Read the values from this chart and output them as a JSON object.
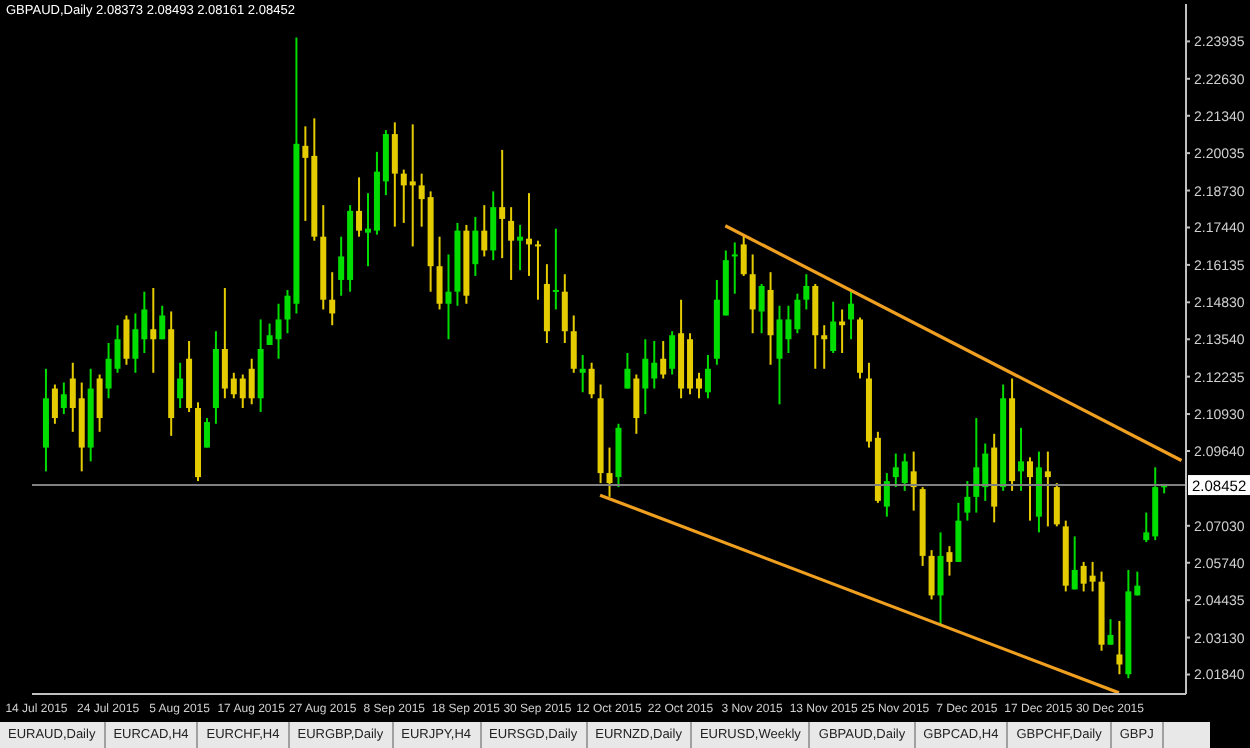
{
  "chart_data": {
    "type": "candlestick",
    "title": "GBPAUD,Daily 2.08373 2.08493 2.08161 2.08452",
    "categories": [
      "14 Jul 2015",
      null,
      null,
      null,
      null,
      null,
      null,
      null,
      "24 Jul 2015",
      null,
      null,
      null,
      null,
      null,
      null,
      null,
      "5 Aug 2015",
      null,
      null,
      null,
      null,
      null,
      null,
      null,
      "17 Aug 2015",
      null,
      null,
      null,
      null,
      null,
      null,
      null,
      "27 Aug 2015",
      null,
      null,
      null,
      null,
      null,
      null,
      null,
      "8 Sep 2015",
      null,
      null,
      null,
      null,
      null,
      null,
      null,
      "18 Sep 2015",
      null,
      null,
      null,
      null,
      null,
      null,
      null,
      "30 Sep 2015",
      null,
      null,
      null,
      null,
      null,
      null,
      null,
      "12 Oct 2015",
      null,
      null,
      null,
      null,
      null,
      null,
      null,
      "22 Oct 2015",
      null,
      null,
      null,
      null,
      null,
      null,
      null,
      "3 Nov 2015",
      null,
      null,
      null,
      null,
      null,
      null,
      null,
      "13 Nov 2015",
      null,
      null,
      null,
      null,
      null,
      null,
      null,
      "25 Nov 2015",
      null,
      null,
      null,
      null,
      null,
      null,
      null,
      "7 Dec 2015",
      null,
      null,
      null,
      null,
      null,
      null,
      null,
      "17 Dec 2015",
      null,
      null,
      null,
      null,
      null,
      null,
      null,
      "30 Dec 2015",
      null,
      null,
      null,
      null,
      null,
      null,
      null,
      null
    ],
    "ohlc": [
      null,
      [
        2.0976,
        2.1251,
        2.0893,
        2.1148
      ],
      [
        2.1182,
        2.1196,
        2.1059,
        2.1079
      ],
      [
        2.1114,
        2.1203,
        2.1093,
        2.1162
      ],
      [
        2.1217,
        2.1272,
        2.1031,
        2.1114
      ],
      [
        2.1148,
        2.1203,
        2.0893,
        2.0976
      ],
      [
        2.0976,
        2.1251,
        2.0928,
        2.1182
      ],
      [
        2.1217,
        2.1231,
        2.1031,
        2.1079
      ],
      [
        2.1182,
        2.1341,
        2.1148,
        2.1286
      ],
      [
        2.1251,
        2.1403,
        2.1237,
        2.1354
      ],
      [
        2.1423,
        2.1437,
        2.1265,
        2.1286
      ],
      [
        2.1286,
        2.1444,
        2.1237,
        2.1389
      ],
      [
        2.1354,
        2.152,
        2.1306,
        2.1458
      ],
      [
        2.1389,
        2.1533,
        2.1237,
        2.1354
      ],
      [
        2.1354,
        2.1471,
        2.1354,
        2.1437
      ],
      [
        2.1389,
        2.1451,
        2.1017,
        2.1079
      ],
      [
        2.1148,
        2.1272,
        2.1114,
        2.1217
      ],
      [
        2.1286,
        2.1348,
        2.11,
        2.1114
      ],
      [
        2.1114,
        2.1134,
        2.0859,
        2.0873
      ],
      [
        2.0976,
        2.1079,
        2.0976,
        2.1065
      ],
      [
        2.1114,
        2.1382,
        2.1059,
        2.132
      ],
      [
        2.132,
        2.1533,
        2.1148,
        2.1182
      ],
      [
        2.1217,
        2.1237,
        2.1148,
        2.1162
      ],
      [
        2.1217,
        2.1231,
        2.1114,
        2.1148
      ],
      [
        2.1251,
        2.1286,
        2.1127,
        2.1148
      ],
      [
        2.1148,
        2.1423,
        2.11,
        2.132
      ],
      [
        2.1334,
        2.1409,
        2.1334,
        2.1368
      ],
      [
        2.1354,
        2.1478,
        2.1286,
        2.1423
      ],
      [
        2.1423,
        2.1526,
        2.1375,
        2.1506
      ],
      [
        2.1478,
        2.2407,
        2.1444,
        2.2036
      ],
      [
        2.2029,
        2.2097,
        2.1767,
        2.1987
      ],
      [
        2.1994,
        2.2125,
        2.1698,
        2.1712
      ],
      [
        2.1712,
        2.1822,
        2.1458,
        2.1492
      ],
      [
        2.1492,
        2.1588,
        2.1403,
        2.1444
      ],
      [
        2.1561,
        2.1712,
        2.1506,
        2.1643
      ],
      [
        2.1561,
        2.1822,
        2.152,
        2.1802
      ],
      [
        2.1802,
        2.1919,
        2.1712,
        2.1733
      ],
      [
        2.1726,
        2.1864,
        2.1609,
        2.174
      ],
      [
        2.1733,
        2.2008,
        2.1719,
        2.1939
      ],
      [
        2.1905,
        2.2084,
        2.1857,
        2.207
      ],
      [
        2.207,
        2.2111,
        2.1747,
        2.1932
      ],
      [
        2.1932,
        2.1946,
        2.176,
        2.1891
      ],
      [
        2.1905,
        2.2104,
        2.1678,
        2.1891
      ],
      [
        2.1891,
        2.1932,
        2.1747,
        2.1843
      ],
      [
        2.185,
        2.187,
        2.152,
        2.1609
      ],
      [
        2.1609,
        2.1712,
        2.1458,
        2.1478
      ],
      [
        2.1478,
        2.165,
        2.1354,
        2.152
      ],
      [
        2.152,
        2.176,
        2.1471,
        2.1733
      ],
      [
        2.1733,
        2.1753,
        2.1478,
        2.1506
      ],
      [
        2.1616,
        2.1781,
        2.1575,
        2.1733
      ],
      [
        2.1733,
        2.1822,
        2.1643,
        2.1664
      ],
      [
        2.1664,
        2.187,
        2.163,
        2.1815
      ],
      [
        2.1815,
        2.2015,
        2.1637,
        2.1774
      ],
      [
        2.1767,
        2.1815,
        2.1561,
        2.1698
      ],
      [
        2.1698,
        2.1753,
        2.1595,
        2.1712
      ],
      [
        2.1705,
        2.1864,
        2.1575,
        2.1685
      ],
      [
        2.1685,
        2.1698,
        2.1492,
        2.1678
      ],
      [
        2.1547,
        2.1616,
        2.1341,
        2.1382
      ],
      [
        2.152,
        2.174,
        2.1458,
        2.1526
      ],
      [
        2.152,
        2.1581,
        2.1341,
        2.1382
      ],
      [
        2.1382,
        2.1437,
        2.1237,
        2.1251
      ],
      [
        2.1237,
        2.1299,
        2.1169,
        2.1251
      ],
      [
        2.1251,
        2.1272,
        2.1148,
        2.1162
      ],
      [
        2.1148,
        2.1196,
        2.0852,
        2.0887
      ],
      [
        2.0887,
        2.0976,
        2.0804,
        2.0852
      ],
      [
        2.0873,
        2.1059,
        2.0838,
        2.1045
      ],
      [
        2.1182,
        2.1306,
        2.1182,
        2.1251
      ],
      [
        2.1217,
        2.1231,
        2.1024,
        2.1079
      ],
      [
        2.1182,
        2.1354,
        2.1093,
        2.1286
      ],
      [
        2.1217,
        2.1348,
        2.1182,
        2.1272
      ],
      [
        2.1286,
        2.1348,
        2.1217,
        2.1231
      ],
      [
        2.1251,
        2.1382,
        2.1231,
        2.1368
      ],
      [
        2.1375,
        2.1492,
        2.1148,
        2.1182
      ],
      [
        2.1354,
        2.1375,
        2.1162,
        2.1182
      ],
      [
        2.1217,
        2.1237,
        2.1148,
        2.1182
      ],
      [
        2.1169,
        2.1299,
        2.1148,
        2.1251
      ],
      [
        2.1286,
        2.1561,
        2.1265,
        2.1492
      ],
      [
        2.1437,
        2.1664,
        2.1437,
        2.163
      ],
      [
        2.1643,
        2.1692,
        2.1513,
        2.165
      ],
      [
        2.1685,
        2.1719,
        2.1575,
        2.1581
      ],
      [
        2.1581,
        2.165,
        2.1375,
        2.1458
      ],
      [
        2.1451,
        2.1547,
        2.1375,
        2.154
      ],
      [
        2.1526,
        2.1588,
        2.1265,
        2.1368
      ],
      [
        2.1286,
        2.1471,
        2.1127,
        2.1423
      ],
      [
        2.1354,
        2.1471,
        2.1306,
        2.1423
      ],
      [
        2.1389,
        2.1513,
        2.1375,
        2.1492
      ],
      [
        2.1492,
        2.1581,
        2.1458,
        2.154
      ],
      [
        2.154,
        2.1547,
        2.1251,
        2.1368
      ],
      [
        2.1368,
        2.1403,
        2.1251,
        2.1354
      ],
      [
        2.1313,
        2.1485,
        2.1306,
        2.1416
      ],
      [
        2.1416,
        2.1458,
        2.1306,
        2.1403
      ],
      [
        2.1423,
        2.152,
        2.1354,
        2.1478
      ],
      [
        2.1423,
        2.143,
        2.1217,
        2.1237
      ],
      [
        2.1217,
        2.1272,
        2.0976,
        2.0997
      ],
      [
        2.101,
        2.1031,
        2.0783,
        2.079
      ],
      [
        2.077,
        2.0887,
        2.0735,
        2.0859
      ],
      [
        2.0873,
        2.0955,
        2.0838,
        2.0907
      ],
      [
        2.0852,
        2.0955,
        2.0825,
        2.0928
      ],
      [
        2.0893,
        2.0962,
        2.0756,
        2.0838
      ],
      [
        2.0831,
        2.0838,
        2.0563,
        2.0598
      ],
      [
        2.0598,
        2.0618,
        2.0446,
        2.046
      ],
      [
        2.046,
        2.068,
        2.036,
        2.0598
      ],
      [
        2.0611,
        2.0632,
        2.0529,
        2.0577
      ],
      [
        2.0577,
        2.0783,
        2.0577,
        2.0721
      ],
      [
        2.0749,
        2.0859,
        2.0721,
        2.0804
      ],
      [
        2.0804,
        2.1079,
        2.0749,
        2.0907
      ],
      [
        2.0838,
        2.099,
        2.079,
        2.0955
      ],
      [
        2.0976,
        2.1024,
        2.0715,
        2.077
      ],
      [
        2.0838,
        2.1196,
        2.0825,
        2.1148
      ],
      [
        2.1148,
        2.1217,
        2.0825,
        2.0859
      ],
      [
        2.0893,
        2.1045,
        2.0825,
        2.0928
      ],
      [
        2.0928,
        2.0942,
        2.0721,
        2.0873
      ],
      [
        2.0735,
        2.0962,
        2.068,
        2.0907
      ],
      [
        2.0893,
        2.0962,
        2.0701,
        2.0873
      ],
      [
        2.0838,
        2.0852,
        2.0701,
        2.0708
      ],
      [
        2.0701,
        2.0721,
        2.0474,
        2.0494
      ],
      [
        2.0481,
        2.0666,
        2.0481,
        2.0549
      ],
      [
        2.0563,
        2.0577,
        2.0474,
        2.0501
      ],
      [
        2.0529,
        2.0577,
        2.0474,
        2.0508
      ],
      [
        2.0508,
        2.0543,
        2.0267,
        2.0288
      ],
      [
        2.0288,
        2.0377,
        2.0288,
        2.0322
      ],
      [
        2.0254,
        2.0371,
        2.0185,
        2.0219
      ],
      [
        2.0185,
        2.0549,
        2.0171,
        2.0474
      ],
      [
        2.046,
        2.0543,
        2.046,
        2.0494
      ],
      [
        2.0653,
        2.0749,
        2.0646,
        2.068
      ],
      [
        2.0666,
        2.0907,
        2.0653,
        2.0838
      ],
      [
        2.08373,
        2.08493,
        2.08161,
        2.08452
      ],
      null,
      null
    ],
    "colors": [
      null,
      "#00dd00",
      "#e5cc00",
      "#00dd00",
      "#e5cc00",
      "#e5cc00",
      "#00dd00",
      "#e5cc00",
      "#00dd00",
      "#00dd00",
      "#e5cc00",
      "#00dd00",
      "#00dd00",
      "#e5cc00",
      "#00dd00",
      "#e5cc00",
      "#00dd00",
      "#e5cc00",
      "#e5cc00",
      "#00dd00",
      "#00dd00",
      "#e5cc00",
      "#e5cc00",
      "#e5cc00",
      "#e5cc00",
      "#00dd00",
      "#00dd00",
      "#00dd00",
      "#00dd00",
      "#00dd00",
      "#e5cc00",
      "#e5cc00",
      "#e5cc00",
      "#e5cc00",
      "#00dd00",
      "#00dd00",
      "#e5cc00",
      "#00dd00",
      "#00dd00",
      "#00dd00",
      "#e5cc00",
      "#e5cc00",
      "#e5cc00",
      "#e5cc00",
      "#e5cc00",
      "#e5cc00",
      "#00dd00",
      "#00dd00",
      "#e5cc00",
      "#00dd00",
      "#e5cc00",
      "#00dd00",
      "#e5cc00",
      "#e5cc00",
      "#00dd00",
      "#e5cc00",
      "#e5cc00",
      "#e5cc00",
      "#00dd00",
      "#e5cc00",
      "#e5cc00",
      "#00dd00",
      "#e5cc00",
      "#e5cc00",
      "#e5cc00",
      "#00dd00",
      "#00dd00",
      "#e5cc00",
      "#00dd00",
      "#00dd00",
      "#e5cc00",
      "#00dd00",
      "#e5cc00",
      "#e5cc00",
      "#e5cc00",
      "#00dd00",
      "#00dd00",
      "#00dd00",
      "#00dd00",
      "#e5cc00",
      "#e5cc00",
      "#00dd00",
      "#e5cc00",
      "#00dd00",
      "#00dd00",
      "#00dd00",
      "#00dd00",
      "#e5cc00",
      "#e5cc00",
      "#00dd00",
      "#e5cc00",
      "#00dd00",
      "#e5cc00",
      "#e5cc00",
      "#e5cc00",
      "#00dd00",
      "#00dd00",
      "#00dd00",
      "#e5cc00",
      "#e5cc00",
      "#e5cc00",
      "#00dd00",
      "#e5cc00",
      "#00dd00",
      "#00dd00",
      "#00dd00",
      "#00dd00",
      "#e5cc00",
      "#00dd00",
      "#e5cc00",
      "#00dd00",
      "#e5cc00",
      "#00dd00",
      "#e5cc00",
      "#e5cc00",
      "#e5cc00",
      "#00dd00",
      "#e5cc00",
      "#e5cc00",
      "#e5cc00",
      "#00dd00",
      "#e5cc00",
      "#00dd00",
      "#00dd00",
      "#00dd00",
      "#00dd00",
      "#00dd00",
      null,
      null
    ],
    "series": [
      {
        "type": "line",
        "color": "#f0a020",
        "values": [
          null,
          null,
          null,
          null,
          null,
          null,
          null,
          null,
          null,
          null,
          null,
          null,
          null,
          null,
          null,
          null,
          null,
          null,
          null,
          null,
          null,
          null,
          null,
          null,
          null,
          null,
          null,
          null,
          null,
          null,
          null,
          null,
          null,
          null,
          null,
          null,
          null,
          null,
          null,
          null,
          null,
          null,
          null,
          null,
          null,
          null,
          null,
          null,
          null,
          null,
          null,
          null,
          null,
          null,
          null,
          null,
          null,
          null,
          null,
          null,
          null,
          null,
          null,
          null,
          null,
          null,
          null,
          null,
          null,
          null,
          null,
          null,
          null,
          null,
          null,
          null,
          null,
          2.175,
          null,
          null,
          null,
          null,
          null,
          null,
          null,
          null,
          null,
          null,
          null,
          null,
          null,
          null,
          null,
          null,
          null,
          null,
          null,
          null,
          null,
          null,
          null,
          null,
          null,
          null,
          null,
          null,
          null,
          null,
          null,
          null,
          null,
          null,
          null,
          null,
          null,
          null,
          null,
          null,
          null,
          null,
          null,
          null,
          null,
          null,
          null,
          null,
          null,
          null,
          2.0931
        ]
      },
      {
        "type": "line",
        "color": "#f0a020",
        "values": [
          null,
          null,
          null,
          null,
          null,
          null,
          null,
          null,
          null,
          null,
          null,
          null,
          null,
          null,
          null,
          null,
          null,
          null,
          null,
          null,
          null,
          null,
          null,
          null,
          null,
          null,
          null,
          null,
          null,
          null,
          null,
          null,
          null,
          null,
          null,
          null,
          null,
          null,
          null,
          null,
          null,
          null,
          null,
          null,
          null,
          null,
          null,
          null,
          null,
          null,
          null,
          null,
          null,
          null,
          null,
          null,
          null,
          null,
          null,
          null,
          null,
          null,
          null,
          2.081,
          null,
          null,
          null,
          null,
          null,
          null,
          null,
          null,
          null,
          null,
          null,
          null,
          null,
          null,
          null,
          null,
          null,
          null,
          null,
          null,
          null,
          null,
          null,
          null,
          null,
          null,
          null,
          null,
          null,
          null,
          null,
          null,
          null,
          null,
          null,
          null,
          null,
          null,
          null,
          null,
          null,
          null,
          null,
          null,
          null,
          null,
          null,
          null,
          null,
          null,
          null,
          null,
          null,
          null,
          null,
          null,
          null,
          2.012,
          null,
          null,
          null,
          null,
          null,
          null,
          null
        ]
      }
    ],
    "ylim": [
      2.0116,
      2.2524
    ],
    "yticks": [
      {
        "value": 2.23935,
        "label": "2.23935"
      },
      {
        "value": 2.2263,
        "label": "2.22630"
      },
      {
        "value": 2.2134,
        "label": "2.21340"
      },
      {
        "value": 2.20035,
        "label": "2.20035"
      },
      {
        "value": 2.1873,
        "label": "2.18730"
      },
      {
        "value": 2.1744,
        "label": "2.17440"
      },
      {
        "value": 2.16135,
        "label": "2.16135"
      },
      {
        "value": 2.1483,
        "label": "2.14830"
      },
      {
        "value": 2.1354,
        "label": "2.13540"
      },
      {
        "value": 2.12235,
        "label": "2.12235"
      },
      {
        "value": 2.1093,
        "label": "2.10930"
      },
      {
        "value": 2.0964,
        "label": "2.09640"
      },
      {
        "value": 2.0703,
        "label": "2.07030"
      },
      {
        "value": 2.0574,
        "label": "2.05740"
      },
      {
        "value": 2.04435,
        "label": "2.04435"
      },
      {
        "value": 2.0313,
        "label": "2.03130"
      },
      {
        "value": 2.0184,
        "label": "2.01840"
      }
    ],
    "ref_lines": [
      {
        "axis": "y",
        "value": 2.08452,
        "label": "2.08452",
        "color": "#808080"
      }
    ],
    "annotations": [
      "EURAUD,Daily",
      "EURCAD,H4",
      "EURCHF,H4",
      "EURGBP,Daily",
      "EURJPY,H4",
      "EURSGD,Daily",
      "EURNZD,Daily",
      "EURUSD,Weekly",
      "GBPAUD,Daily",
      "GBPCAD,H4",
      "GBPCHF,Daily",
      "GBPJ"
    ]
  }
}
